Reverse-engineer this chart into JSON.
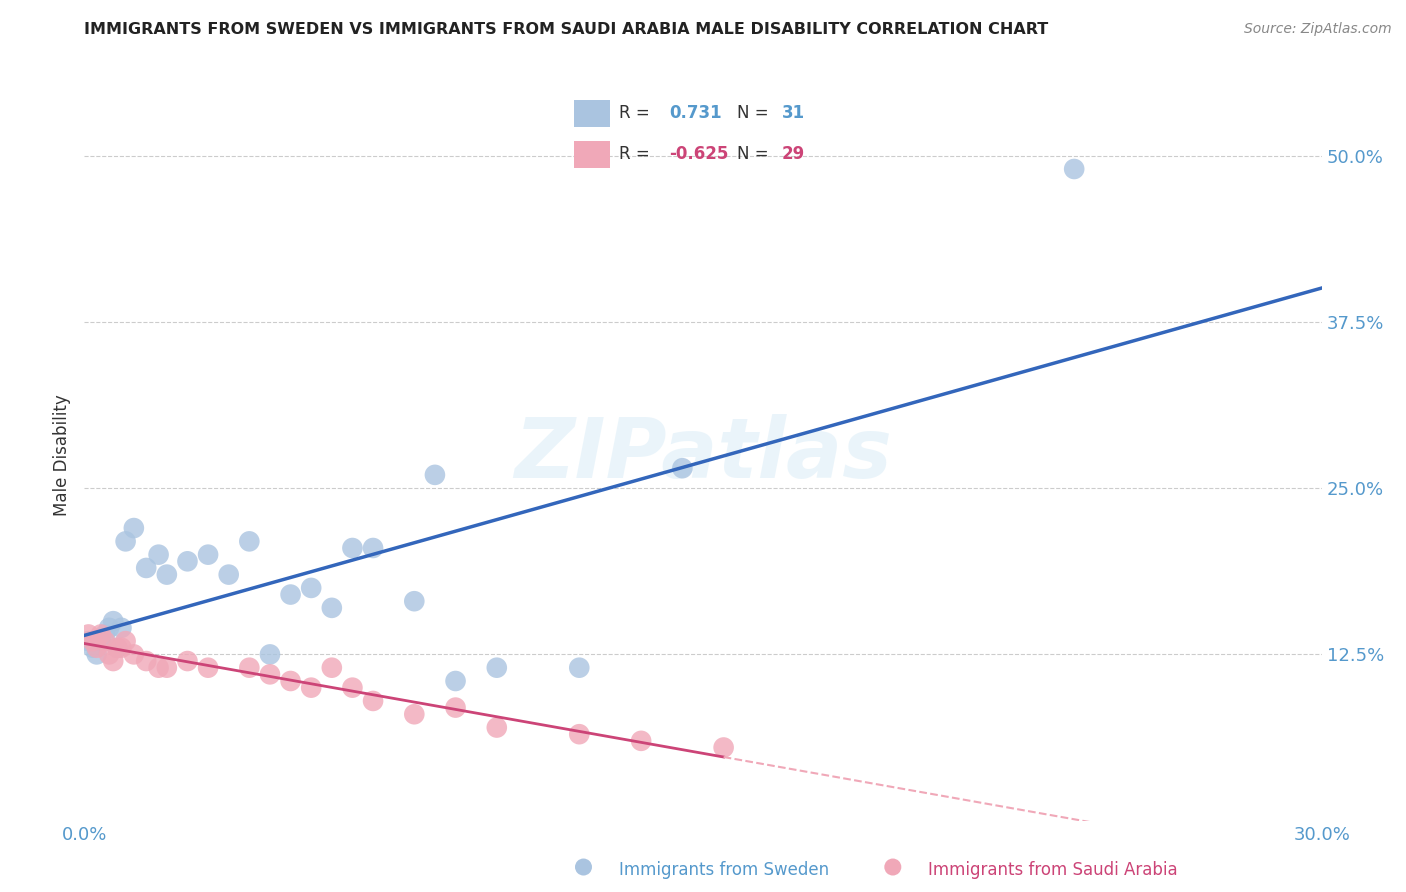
{
  "title": "IMMIGRANTS FROM SWEDEN VS IMMIGRANTS FROM SAUDI ARABIA MALE DISABILITY CORRELATION CHART",
  "source": "Source: ZipAtlas.com",
  "ylabel_label": "Male Disability",
  "xlim": [
    0.0,
    0.3
  ],
  "ylim": [
    0.0,
    0.55
  ],
  "x_ticks": [
    0.0,
    0.05,
    0.1,
    0.15,
    0.2,
    0.25,
    0.3
  ],
  "x_tick_labels": [
    "0.0%",
    "",
    "",
    "",
    "",
    "",
    "30.0%"
  ],
  "y_ticks": [
    0.0,
    0.125,
    0.25,
    0.375,
    0.5
  ],
  "y_tick_labels": [
    "",
    "12.5%",
    "25.0%",
    "37.5%",
    "50.0%"
  ],
  "grid_color": "#cccccc",
  "background_color": "#ffffff",
  "sweden_color": "#aac4e0",
  "saudi_color": "#f0a8b8",
  "sweden_line_color": "#3366bb",
  "saudi_line_color": "#cc4477",
  "saudi_line_dash_color": "#f0a8b8",
  "tick_color": "#5599cc",
  "R_sweden": 0.731,
  "N_sweden": 31,
  "R_saudi": -0.625,
  "N_saudi": 29,
  "sweden_x": [
    0.001,
    0.002,
    0.003,
    0.004,
    0.005,
    0.006,
    0.007,
    0.008,
    0.009,
    0.01,
    0.012,
    0.015,
    0.018,
    0.02,
    0.025,
    0.03,
    0.035,
    0.04,
    0.045,
    0.05,
    0.055,
    0.06,
    0.065,
    0.07,
    0.08,
    0.085,
    0.09,
    0.1,
    0.12,
    0.145,
    0.24
  ],
  "sweden_y": [
    0.135,
    0.13,
    0.125,
    0.135,
    0.14,
    0.145,
    0.15,
    0.13,
    0.145,
    0.21,
    0.22,
    0.19,
    0.2,
    0.185,
    0.195,
    0.2,
    0.185,
    0.21,
    0.125,
    0.17,
    0.175,
    0.16,
    0.205,
    0.205,
    0.165,
    0.26,
    0.105,
    0.115,
    0.115,
    0.265,
    0.49
  ],
  "saudi_x": [
    0.001,
    0.002,
    0.003,
    0.004,
    0.005,
    0.006,
    0.007,
    0.008,
    0.009,
    0.01,
    0.012,
    0.015,
    0.018,
    0.02,
    0.025,
    0.03,
    0.04,
    0.045,
    0.05,
    0.055,
    0.06,
    0.065,
    0.07,
    0.08,
    0.09,
    0.1,
    0.12,
    0.135,
    0.155
  ],
  "saudi_y": [
    0.14,
    0.135,
    0.13,
    0.14,
    0.135,
    0.125,
    0.12,
    0.13,
    0.13,
    0.135,
    0.125,
    0.12,
    0.115,
    0.115,
    0.12,
    0.115,
    0.115,
    0.11,
    0.105,
    0.1,
    0.115,
    0.1,
    0.09,
    0.08,
    0.085,
    0.07,
    0.065,
    0.06,
    0.055
  ]
}
